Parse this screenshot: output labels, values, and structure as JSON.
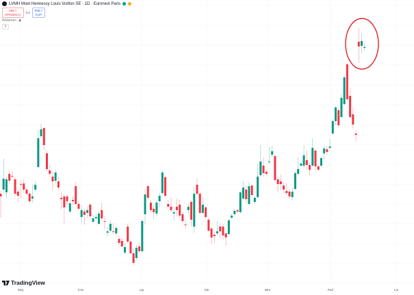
{
  "header": {
    "title": "LVMH Moet Hennessy Louis Vuitton SE · 1D · Euronext Paris",
    "status_colors": [
      "#089981",
      "#f9a825"
    ]
  },
  "trade": {
    "sell_price": "598,7",
    "sell_label": "SPRZEDAJ",
    "spread": "0,0",
    "buy_price": "598,7",
    "buy_label": "KUP"
  },
  "indicators": {
    "volume_label": "Wolumen"
  },
  "brand": {
    "name": "TradingView"
  },
  "chart_data": {
    "type": "candlestick",
    "interval": "1D",
    "x_labels": [
      "Maj",
      "Cze",
      "Lip",
      "Sie",
      "Wrz",
      "Paź",
      "Lis"
    ],
    "colors": {
      "up": "#089981",
      "down": "#f23645",
      "highlight": "#e01f26"
    },
    "grid": true,
    "highlight_annotation": "circle around last 3 candles",
    "ohlc": [
      [
        491.5,
        493.5,
        474,
        489.5
      ],
      [
        494.5,
        517,
        492,
        502.5
      ],
      [
        492.5,
        504,
        488,
        502
      ],
      [
        506,
        509,
        499,
        501
      ],
      [
        504.5,
        508,
        502,
        504
      ],
      [
        502,
        503.5,
        489.5,
        491.5
      ],
      [
        493,
        495,
        485.5,
        490
      ],
      [
        498.5,
        501,
        488,
        498
      ],
      [
        499,
        502,
        492,
        494.5
      ],
      [
        494.5,
        496.5,
        489.5,
        491.5
      ],
      [
        491.5,
        493,
        484.5,
        486
      ],
      [
        488,
        498,
        485,
        489.5
      ],
      [
        494.5,
        500.5,
        493,
        498
      ],
      [
        511,
        538,
        510,
        532
      ],
      [
        533.5,
        542.5,
        532,
        538.5
      ],
      [
        539.5,
        540,
        523,
        527
      ],
      [
        521,
        523,
        508,
        509.5
      ],
      [
        508.5,
        512.5,
        504,
        506
      ],
      [
        504,
        507.5,
        494,
        500.5
      ],
      [
        501,
        509,
        499,
        507
      ],
      [
        500.5,
        504,
        494,
        496
      ],
      [
        488.5,
        493,
        480,
        487.5
      ],
      [
        489.5,
        491,
        469.5,
        481.5
      ],
      [
        489.5,
        491,
        483,
        486
      ],
      [
        478.5,
        486.5,
        477.5,
        484.5
      ],
      [
        487,
        489.5,
        483,
        486
      ],
      [
        497,
        500,
        483,
        484
      ],
      [
        484,
        485.5,
        479,
        480.5
      ],
      [
        474.5,
        483,
        470,
        479.5
      ],
      [
        478.5,
        480.5,
        469,
        476
      ],
      [
        477.5,
        482,
        474,
        479.5
      ],
      [
        483.5,
        484.5,
        473,
        475
      ],
      [
        471,
        475.5,
        470,
        473.5
      ],
      [
        473.5,
        477,
        472,
        474.5
      ],
      [
        469.5,
        479,
        469,
        477
      ],
      [
        479.5,
        484.5,
        472,
        473.5
      ],
      [
        471.5,
        475,
        465.5,
        471
      ],
      [
        463,
        467,
        460.5,
        464
      ],
      [
        464.5,
        472,
        463,
        469.5
      ],
      [
        464,
        470,
        462,
        463.5
      ],
      [
        462.5,
        468,
        460.5,
        466.5
      ],
      [
        458.5,
        460.5,
        454,
        455.5
      ],
      [
        457,
        459.5,
        451.5,
        453
      ],
      [
        448.5,
        455.5,
        447,
        452.5
      ],
      [
        467.5,
        469.5,
        455,
        456.5
      ],
      [
        456.5,
        458,
        447,
        448
      ],
      [
        448,
        452,
        439.5,
        441
      ],
      [
        444.5,
        454,
        443,
        452
      ],
      [
        453,
        456,
        448,
        449.5
      ],
      [
        449.5,
        473,
        448,
        471.5
      ],
      [
        476.5,
        495,
        469,
        491
      ],
      [
        497,
        498,
        487,
        488.5
      ],
      [
        485,
        487,
        477.5,
        479.5
      ],
      [
        480.5,
        483,
        473,
        478
      ],
      [
        477,
        487,
        475,
        485
      ],
      [
        486,
        492,
        482,
        490
      ],
      [
        492,
        508,
        490.5,
        507
      ],
      [
        503.5,
        504.5,
        489,
        490
      ],
      [
        484,
        487,
        480.5,
        482
      ],
      [
        482,
        489,
        478,
        479.5
      ],
      [
        477,
        482,
        472,
        478
      ],
      [
        482,
        488,
        475,
        479.5
      ],
      [
        483.5,
        487,
        474,
        475.5
      ],
      [
        476.5,
        478,
        470,
        471.5
      ],
      [
        469,
        472,
        466,
        468.5
      ],
      [
        479.5,
        484,
        477,
        482
      ],
      [
        485.5,
        487,
        467.5,
        472.5
      ],
      [
        467.5,
        497,
        463,
        491.5
      ],
      [
        498,
        502.5,
        490.5,
        491.5
      ],
      [
        491.5,
        493,
        476.5,
        477.5
      ],
      [
        477.5,
        489.5,
        476.5,
        483.5
      ],
      [
        481.5,
        482.5,
        473,
        474.5
      ],
      [
        472.5,
        474,
        463.5,
        464.5
      ],
      [
        466,
        467,
        454.5,
        459.5
      ],
      [
        461.5,
        464,
        455.5,
        460.5
      ],
      [
        462.5,
        471.5,
        461,
        464
      ],
      [
        467.5,
        470,
        459.5,
        464
      ],
      [
        467.5,
        469.5,
        458,
        461
      ],
      [
        462.5,
        464,
        453.5,
        459.5
      ],
      [
        462,
        473,
        460.5,
        472
      ],
      [
        474,
        477,
        473,
        475.5
      ],
      [
        476.5,
        480.5,
        475,
        479
      ],
      [
        479.5,
        480.5,
        477,
        478.5
      ],
      [
        478,
        493.5,
        477,
        492.5
      ],
      [
        488,
        501,
        487,
        496
      ],
      [
        494.5,
        497,
        485,
        487.5
      ],
      [
        484,
        500,
        483,
        497
      ],
      [
        497.5,
        498.5,
        488.5,
        490.5
      ],
      [
        485.5,
        490,
        484,
        488.5
      ],
      [
        489,
        513,
        488,
        504
      ],
      [
        505,
        527,
        504,
        515
      ],
      [
        512,
        518,
        504,
        506.5
      ],
      [
        507.5,
        509,
        504,
        506
      ],
      [
        514.5,
        526,
        513,
        515
      ],
      [
        520,
        526.5,
        518,
        522.5
      ],
      [
        519,
        520,
        500.5,
        501.5
      ],
      [
        502,
        504,
        493,
        498.5
      ],
      [
        500.5,
        505.5,
        494,
        498.5
      ],
      [
        497.5,
        499.5,
        492,
        494.5
      ],
      [
        493.5,
        499,
        490.5,
        492
      ],
      [
        493,
        495,
        488,
        489.5
      ],
      [
        489,
        496,
        486.5,
        493
      ],
      [
        495,
        508,
        494,
        506.5
      ],
      [
        506,
        518,
        504.5,
        509.5
      ],
      [
        512,
        515,
        511,
        513.5
      ],
      [
        512,
        527,
        510,
        519.5
      ],
      [
        516,
        523,
        509,
        512.5
      ],
      [
        512.5,
        514.5,
        505,
        509
      ],
      [
        512,
        532,
        511,
        525
      ],
      [
        523,
        524,
        508.5,
        511.5
      ],
      [
        511.5,
        513,
        508,
        509
      ],
      [
        512,
        519,
        511,
        517.5
      ],
      [
        521,
        526.5,
        516.5,
        524.5
      ],
      [
        524,
        526.5,
        520,
        522
      ],
      [
        525,
        531.5,
        524,
        526
      ],
      [
        535.5,
        545.5,
        534.5,
        544.5
      ],
      [
        544.5,
        555.5,
        541.5,
        554.5
      ],
      [
        552.5,
        554,
        539.5,
        541.5
      ],
      [
        547.5,
        564,
        546.5,
        561.5
      ],
      [
        557,
        578,
        556,
        576.5
      ],
      [
        586,
        586.5,
        559.5,
        560.5
      ],
      [
        563,
        569,
        546.5,
        547.5
      ],
      [
        549.5,
        554.5,
        539,
        542
      ],
      [
        535.5,
        537.5,
        529.5,
        534.5
      ],
      [
        602.5,
        612.5,
        587,
        599
      ],
      [
        599.5,
        608.5,
        594.5,
        603
      ],
      [
        598,
        601,
        596,
        598.7
      ]
    ]
  }
}
